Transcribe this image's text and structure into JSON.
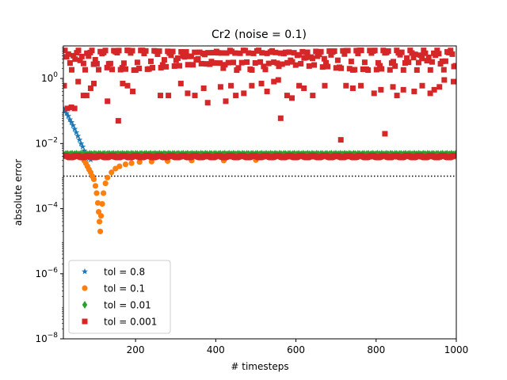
{
  "chart_data": {
    "type": "scatter",
    "title": "Cr2 (noise = 0.1)",
    "xlabel": "# timesteps",
    "ylabel": "absolute error",
    "xlim": [
      20,
      1000
    ],
    "ylim": [
      1e-08,
      10
    ],
    "yscale": "log",
    "x_ticks": [
      {
        "value": 200,
        "label": "200"
      },
      {
        "value": 400,
        "label": "400"
      },
      {
        "value": 600,
        "label": "600"
      },
      {
        "value": 800,
        "label": "800"
      },
      {
        "value": 1000,
        "label": "1000"
      }
    ],
    "y_ticks": [
      {
        "value": 1e-08,
        "base": "10",
        "exp": "−8"
      },
      {
        "value": 1e-06,
        "base": "10",
        "exp": "−6"
      },
      {
        "value": 0.0001,
        "base": "10",
        "exp": "−4"
      },
      {
        "value": 0.01,
        "base": "10",
        "exp": "−2"
      },
      {
        "value": 1,
        "base": "10",
        "exp": "0"
      }
    ],
    "reference_line": {
      "y": 0.001,
      "style": "dotted",
      "color": "#000000"
    },
    "legend_position": "lower-left",
    "series": [
      {
        "name": "tol = 0.8",
        "marker": "star",
        "color": "#1f77b4",
        "description": "decays from ~0.1 at x=20 to ~0.003 by x=80, then follows the flat band",
        "points": [
          [
            20,
            0.12
          ],
          [
            24,
            0.1
          ],
          [
            28,
            0.085
          ],
          [
            32,
            0.07
          ],
          [
            36,
            0.055
          ],
          [
            40,
            0.045
          ],
          [
            44,
            0.036
          ],
          [
            48,
            0.028
          ],
          [
            52,
            0.022
          ],
          [
            56,
            0.017
          ],
          [
            60,
            0.013
          ],
          [
            64,
            0.01
          ],
          [
            68,
            0.008
          ],
          [
            72,
            0.006
          ],
          [
            76,
            0.0048
          ],
          [
            80,
            0.004
          ],
          [
            84,
            0.0035
          ],
          [
            88,
            0.0032
          ]
        ]
      },
      {
        "name": "tol = 0.1",
        "marker": "circle",
        "color": "#ff7f0e",
        "description": "dips to ~2e-5 at x≈110 then recovers to ~0.003",
        "points": [
          [
            72,
            0.003
          ],
          [
            76,
            0.0025
          ],
          [
            80,
            0.002
          ],
          [
            84,
            0.0016
          ],
          [
            88,
            0.0013
          ],
          [
            92,
            0.001
          ],
          [
            96,
            0.0008
          ],
          [
            100,
            0.0005
          ],
          [
            103,
            0.0003
          ],
          [
            106,
            0.00015
          ],
          [
            108,
            8e-05
          ],
          [
            110,
            4e-05
          ],
          [
            112,
            2e-05
          ],
          [
            114,
            6e-05
          ],
          [
            117,
            0.00014
          ],
          [
            120,
            0.0003
          ],
          [
            125,
            0.0006
          ],
          [
            130,
            0.0009
          ],
          [
            140,
            0.0013
          ],
          [
            150,
            0.0017
          ],
          [
            160,
            0.002
          ],
          [
            175,
            0.0023
          ],
          [
            190,
            0.0025
          ],
          [
            210,
            0.0027
          ],
          [
            240,
            0.0028
          ],
          [
            280,
            0.0029
          ],
          [
            340,
            0.003
          ],
          [
            420,
            0.003
          ],
          [
            500,
            0.0031
          ]
        ]
      },
      {
        "name": "tol = 0.01",
        "marker": "diamond",
        "color": "#2ca02c",
        "description": "flat band around 0.004–0.005 across all timesteps",
        "points": [
          [
            22,
            0.0045
          ],
          [
            100,
            0.0045
          ],
          [
            200,
            0.0045
          ],
          [
            300,
            0.0045
          ],
          [
            400,
            0.0045
          ],
          [
            500,
            0.0045
          ],
          [
            600,
            0.0045
          ],
          [
            700,
            0.0045
          ],
          [
            800,
            0.0045
          ],
          [
            900,
            0.0045
          ],
          [
            1000,
            0.0045
          ]
        ]
      },
      {
        "name": "tol = 0.001",
        "marker": "square",
        "color": "#d62728",
        "description": "flat band at ~0.004 plus scattered outliers between ~0.01 and ~8",
        "band_value": 0.004,
        "outliers": [
          [
            22,
            0.6
          ],
          [
            30,
            0.12
          ],
          [
            40,
            0.13
          ],
          [
            48,
            0.12
          ],
          [
            57,
            0.8
          ],
          [
            70,
            0.3
          ],
          [
            78,
            0.3
          ],
          [
            88,
            0.5
          ],
          [
            96,
            0.7
          ],
          [
            130,
            0.2
          ],
          [
            157,
            0.05
          ],
          [
            168,
            0.7
          ],
          [
            180,
            0.6
          ],
          [
            193,
            0.4
          ],
          [
            262,
            0.3
          ],
          [
            282,
            0.3
          ],
          [
            313,
            0.7
          ],
          [
            330,
            0.35
          ],
          [
            348,
            0.3
          ],
          [
            370,
            0.5
          ],
          [
            380,
            0.18
          ],
          [
            412,
            0.55
          ],
          [
            425,
            0.2
          ],
          [
            438,
            0.6
          ],
          [
            450,
            0.3
          ],
          [
            470,
            0.35
          ],
          [
            490,
            0.6
          ],
          [
            514,
            0.7
          ],
          [
            528,
            0.4
          ],
          [
            545,
            0.8
          ],
          [
            556,
            0.9
          ],
          [
            562,
            0.06
          ],
          [
            578,
            0.3
          ],
          [
            590,
            0.25
          ],
          [
            608,
            0.6
          ],
          [
            620,
            0.5
          ],
          [
            642,
            0.3
          ],
          [
            672,
            0.6
          ],
          [
            712,
            0.013
          ],
          [
            725,
            0.6
          ],
          [
            742,
            0.5
          ],
          [
            762,
            0.6
          ],
          [
            795,
            0.35
          ],
          [
            812,
            0.45
          ],
          [
            822,
            0.02
          ],
          [
            842,
            0.55
          ],
          [
            852,
            0.3
          ],
          [
            868,
            0.45
          ],
          [
            895,
            0.4
          ],
          [
            915,
            0.6
          ],
          [
            935,
            0.35
          ],
          [
            945,
            0.45
          ],
          [
            958,
            0.55
          ],
          [
            970,
            0.9
          ],
          [
            993,
            0.8
          ]
        ]
      }
    ]
  }
}
